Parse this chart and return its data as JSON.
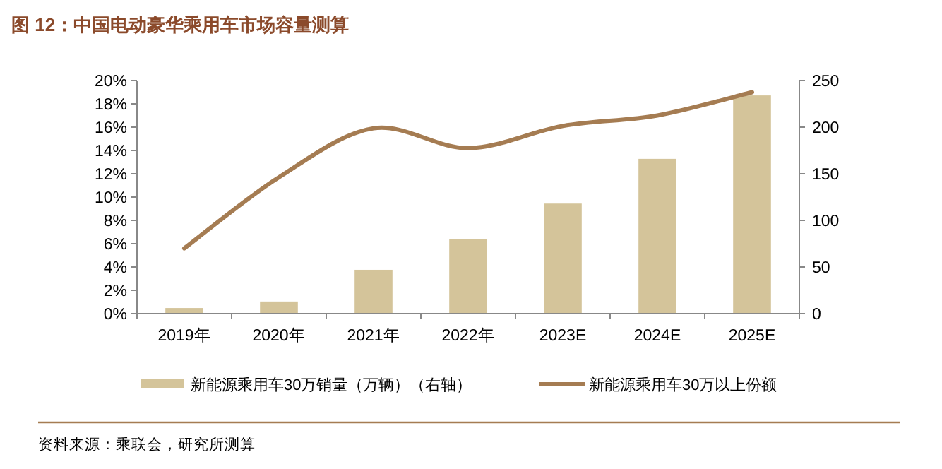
{
  "chart_data": {
    "type": "bar",
    "title": "图 12：中国电动豪华乘用车市场容量测算",
    "categories": [
      "2019年",
      "2020年",
      "2021年",
      "2022年",
      "2023E",
      "2024E",
      "2025E"
    ],
    "series": [
      {
        "name": "新能源乘用车30万销量（万辆）（右轴）",
        "axis": "y2",
        "color": "#d4c49a",
        "values": [
          6,
          13,
          47,
          80,
          118,
          166,
          234
        ]
      },
      {
        "name": "新能源乘用车30万以上份额",
        "type": "line",
        "color": "#a57c52",
        "values": [
          5.6,
          11.7,
          15.9,
          14.2,
          16.1,
          17.0,
          19.0
        ]
      }
    ],
    "ylim": [
      0,
      20
    ],
    "yticks": [
      {
        "value": 0,
        "label": "0%"
      },
      {
        "value": 2,
        "label": "2%"
      },
      {
        "value": 4,
        "label": "4%"
      },
      {
        "value": 6,
        "label": "6%"
      },
      {
        "value": 8,
        "label": "8%"
      },
      {
        "value": 10,
        "label": "10%"
      },
      {
        "value": 12,
        "label": "12%"
      },
      {
        "value": 14,
        "label": "14%"
      },
      {
        "value": 16,
        "label": "16%"
      },
      {
        "value": 18,
        "label": "18%"
      },
      {
        "value": 20,
        "label": "20%"
      }
    ],
    "y2lim": [
      0,
      250
    ],
    "y2ticks": [
      0,
      50,
      100,
      150,
      200,
      250
    ],
    "legend": "bottom",
    "annotations": [
      "资料来源：乘联会，研究所测算"
    ]
  }
}
